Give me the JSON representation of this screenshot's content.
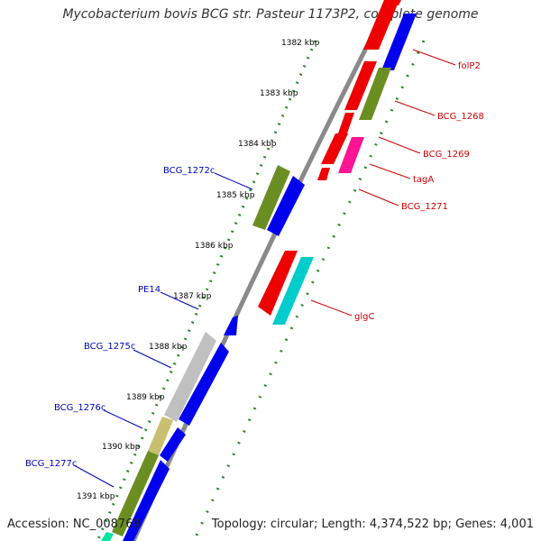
{
  "title": "Mycobacterium bovis BCG str. Pasteur 1173P2, complete genome",
  "footer": {
    "accession": "Accession: NC_008769",
    "topology": "Topology: circular; Length: 4,374,522 bp; Genes: 4,001"
  },
  "colors": {
    "backbone": "#8a8a8a",
    "tick": "#2a8a2a",
    "label_forward": "#cc0000",
    "label_reverse": "#0000bb"
  },
  "kbp_labels": [
    "1382 kbp",
    "1383 kbp",
    "1384 kbp",
    "1385 kbp",
    "1386 kbp",
    "1387 kbp",
    "1388 kbp",
    "1389 kbp",
    "1390 kbp",
    "1391 kbp"
  ],
  "features": [
    {
      "name": "folP2",
      "strand": "forward",
      "color": "#ee0000"
    },
    {
      "name": "BCG_1268",
      "strand": "forward",
      "color": "#6b8e23"
    },
    {
      "name": "BCG_1269",
      "strand": "forward",
      "color": "#ee0000"
    },
    {
      "name": "tagA",
      "strand": "forward",
      "color": "#ff1493"
    },
    {
      "name": "BCG_1271",
      "strand": "forward",
      "color": "#ee0000"
    },
    {
      "name": "glgC",
      "strand": "forward",
      "color": "#00cccc"
    },
    {
      "name": "BCG_1272c",
      "strand": "reverse",
      "color": "#6b8e23"
    },
    {
      "name": "PE14",
      "strand": "reverse",
      "color": "#0000ee"
    },
    {
      "name": "BCG_1275c",
      "strand": "reverse",
      "color": "#c0c0c0"
    },
    {
      "name": "BCG_1276c",
      "strand": "reverse",
      "color": "#c8c070"
    },
    {
      "name": "BCG_1277c",
      "strand": "reverse",
      "color": "#6b8e23"
    }
  ]
}
